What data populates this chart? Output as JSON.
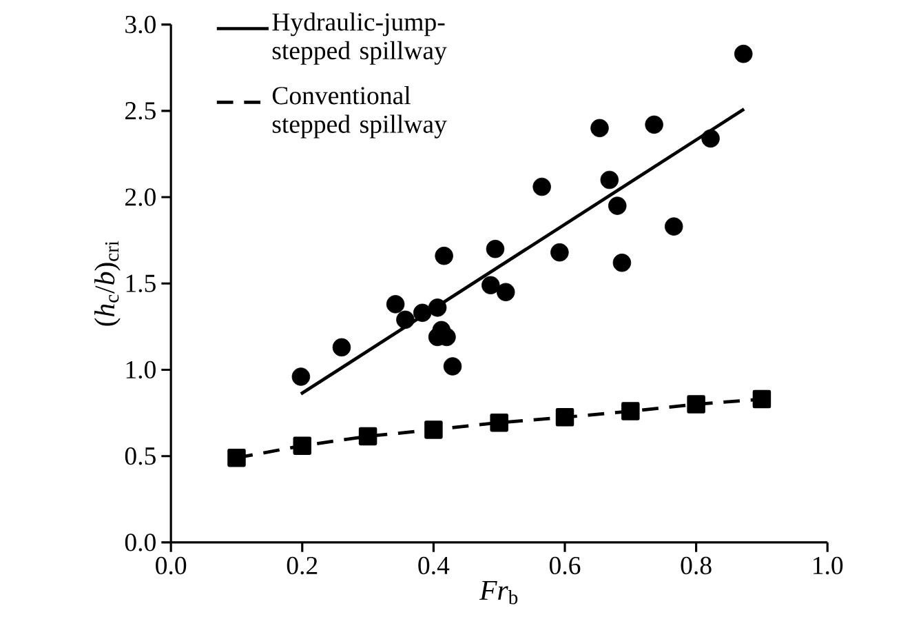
{
  "chart_data": {
    "type": "scatter",
    "xlabel": "*Fr*$_{b}$",
    "ylabel": "(*h*$_{c}$/*b*)$_{cri}$",
    "xlim": [
      0,
      1
    ],
    "ylim": [
      0,
      3
    ],
    "xticks": [
      {
        "value": 0,
        "label": "0.0"
      },
      {
        "value": 0.2,
        "label": "0.2"
      },
      {
        "value": 0.4,
        "label": "0.4"
      },
      {
        "value": 0.6,
        "label": "0.6"
      },
      {
        "value": 0.8,
        "label": "0.8"
      },
      {
        "value": 1,
        "label": "1.0"
      }
    ],
    "yticks": [
      {
        "value": 0,
        "label": "0.0"
      },
      {
        "value": 0.5,
        "label": "0.5"
      },
      {
        "value": 1,
        "label": "1.0"
      },
      {
        "value": 1.5,
        "label": "1.5"
      },
      {
        "value": 2,
        "label": "2.0"
      },
      {
        "value": 2.5,
        "label": "2.5"
      },
      {
        "value": 3,
        "label": "3.0"
      }
    ],
    "legend": "top left",
    "series": [
      {
        "color": "#000000",
        "marker": "circle",
        "x": [
          0.872,
          0.653,
          0.736,
          0.822,
          0.565,
          0.668,
          0.68,
          0.766,
          0.494,
          0.592,
          0.416,
          0.687,
          0.487,
          0.51,
          0.342,
          0.357,
          0.383,
          0.406,
          0.412,
          0.406,
          0.42,
          0.26,
          0.198,
          0.429
        ],
        "values": [
          2.83,
          2.4,
          2.42,
          2.34,
          2.06,
          2.1,
          1.95,
          1.83,
          1.7,
          1.68,
          1.66,
          1.62,
          1.49,
          1.45,
          1.38,
          1.29,
          1.33,
          1.36,
          1.23,
          1.19,
          1.19,
          1.13,
          0.96,
          1.02
        ]
      },
      {
        "type": "line",
        "name": "Hydraulic-jump-stepped spillway",
        "color": "#000000",
        "line_style": "solid",
        "marker": "none",
        "x": [
          0.198,
          0.873
        ],
        "values": [
          0.86,
          2.51
        ]
      },
      {
        "type": "line",
        "name": "Conventional stepped spillway",
        "color": "#000000",
        "line_style": "dashed",
        "marker": "square",
        "x": [
          0.1,
          0.2,
          0.3,
          0.4,
          0.5,
          0.6,
          0.7,
          0.8,
          0.9
        ],
        "values": [
          0.49,
          0.56,
          0.615,
          0.653,
          0.694,
          0.725,
          0.76,
          0.8,
          0.83
        ]
      }
    ]
  }
}
